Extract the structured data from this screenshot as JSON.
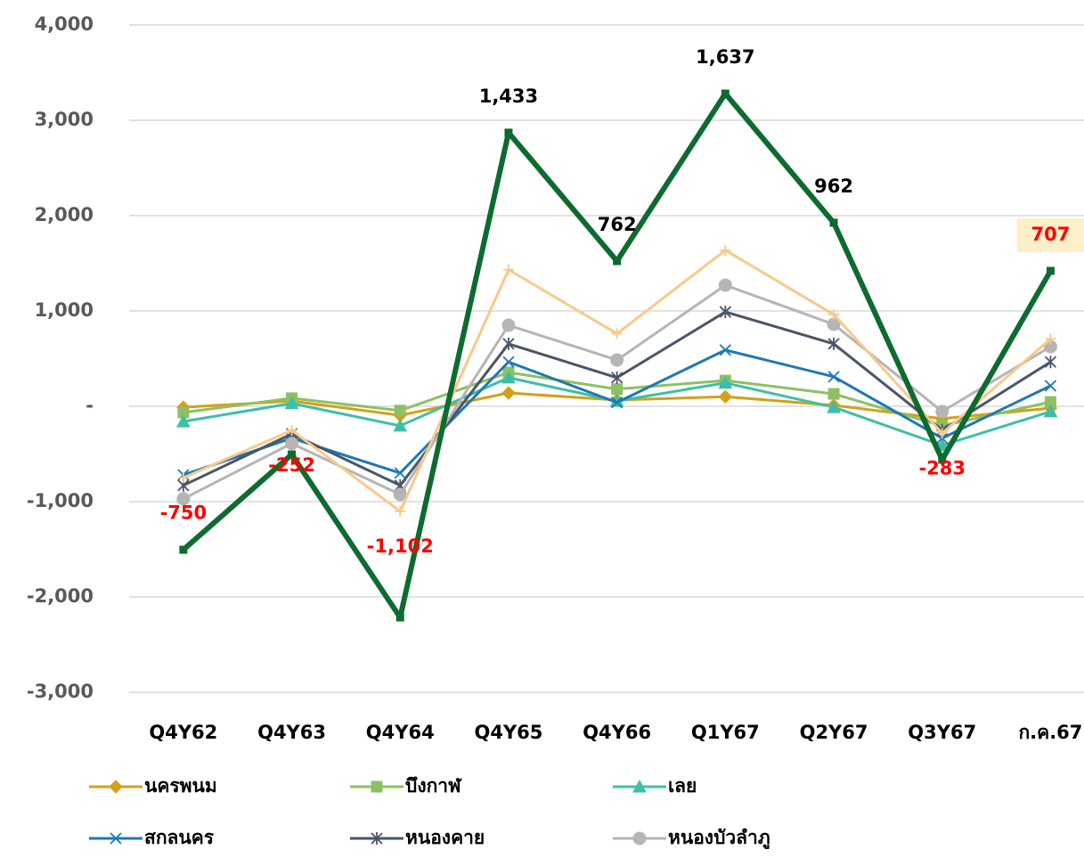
{
  "chart_data": {
    "type": "line",
    "categories": [
      "Q4Y62",
      "Q4Y63",
      "Q4Y64",
      "Q4Y65",
      "Q4Y66",
      "Q1Y67",
      "Q2Y67",
      "Q3Y67",
      "ก.ค.67"
    ],
    "ylim": [
      -3000,
      4000
    ],
    "yticks": [
      {
        "value": -3000,
        "label": "-3,000"
      },
      {
        "value": -2000,
        "label": "-2,000"
      },
      {
        "value": -1000,
        "label": "-1,000"
      },
      {
        "value": 0,
        "label": "-"
      },
      {
        "value": 1000,
        "label": "1,000"
      },
      {
        "value": 2000,
        "label": "2,000"
      },
      {
        "value": 3000,
        "label": "3,000"
      },
      {
        "value": 4000,
        "label": "4,000"
      }
    ],
    "grid": true,
    "series": [
      {
        "name": "นครพนม",
        "color": "#d4a017",
        "marker": "diamond",
        "values": [
          -10,
          55,
          -95,
          140,
          65,
          100,
          10,
          -130,
          -20
        ]
      },
      {
        "name": "บึงกาฬ",
        "color": "#8dc063",
        "marker": "square",
        "values": [
          -65,
          85,
          -45,
          355,
          180,
          270,
          130,
          -205,
          45
        ]
      },
      {
        "name": "เลย",
        "color": "#3cbfa8",
        "marker": "triangle",
        "values": [
          -160,
          30,
          -205,
          300,
          55,
          245,
          -10,
          -410,
          -55
        ]
      },
      {
        "name": "สกลนคร",
        "color": "#1f78b4",
        "marker": "x",
        "values": [
          -720,
          -335,
          -700,
          465,
          40,
          590,
          310,
          -335,
          215
        ]
      },
      {
        "name": "หนองคาย",
        "color": "#4a5568",
        "marker": "star",
        "values": [
          -830,
          -290,
          -830,
          655,
          300,
          990,
          655,
          -250,
          465
        ]
      },
      {
        "name": "หนองบัวลำภู",
        "color": "#b5b5b5",
        "marker": "circle",
        "values": [
          -970,
          -390,
          -925,
          850,
          485,
          1270,
          860,
          -55,
          625
        ]
      },
      {
        "color": "#f8c98a",
        "marker": "plus",
        "values": [
          -750,
          -252,
          -1102,
          1433,
          762,
          1637,
          962,
          -283,
          707
        ],
        "value_labels": [
          "-750",
          "-252",
          "-1,102",
          "1,433",
          "762",
          "1,637",
          "962",
          "-283",
          "707"
        ]
      },
      {
        "color": "#0d6b2f",
        "marker": "square",
        "width": 6,
        "values": [
          -1505,
          -505,
          -2215,
          2870,
          1523,
          3280,
          1925,
          -560,
          1420
        ]
      }
    ]
  }
}
